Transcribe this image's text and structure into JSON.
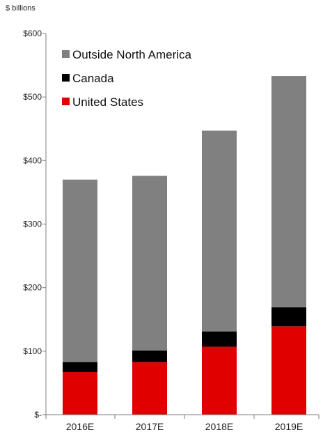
{
  "chart_data": {
    "type": "bar",
    "stacked": true,
    "unit_label": "$ billions",
    "categories": [
      "2016E",
      "2017E",
      "2018E",
      "2019E"
    ],
    "series": [
      {
        "name": "United States",
        "color": "#e00000",
        "values": [
          67,
          83,
          107,
          139
        ]
      },
      {
        "name": "Canada",
        "color": "#000000",
        "values": [
          16,
          18,
          24,
          30
        ]
      },
      {
        "name": "Outside North America",
        "color": "#808080",
        "values": [
          287,
          275,
          316,
          364
        ]
      }
    ],
    "ylim": [
      0,
      600
    ],
    "y_ticks": [
      {
        "value": 0,
        "label": "$-"
      },
      {
        "value": 100,
        "label": "$100"
      },
      {
        "value": 200,
        "label": "$200"
      },
      {
        "value": 300,
        "label": "$300"
      },
      {
        "value": 400,
        "label": "$400"
      },
      {
        "value": 500,
        "label": "$500"
      },
      {
        "value": 600,
        "label": "$600"
      }
    ],
    "legend": {
      "placement": "top-left",
      "order": [
        "Outside North America",
        "Canada",
        "United States"
      ]
    },
    "grid": false
  }
}
